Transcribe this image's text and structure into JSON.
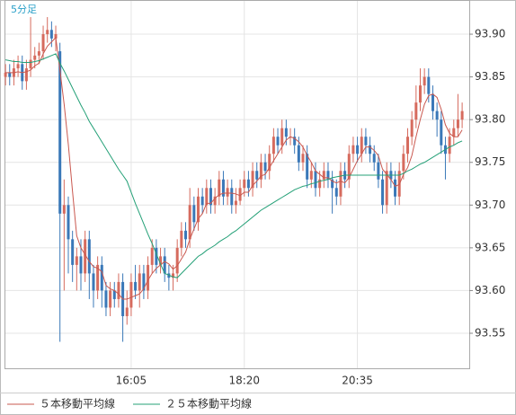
{
  "chart_data": {
    "type": "candlestick",
    "title": "5分足",
    "categories": [
      null,
      null,
      null,
      null,
      null,
      null,
      null,
      null,
      null,
      null,
      null,
      null,
      null,
      null,
      null,
      null,
      null,
      null,
      null,
      null,
      null,
      null,
      null,
      null,
      null,
      null,
      null,
      null,
      null,
      null,
      "16:05",
      null,
      null,
      null,
      null,
      null,
      null,
      null,
      null,
      null,
      null,
      null,
      null,
      null,
      null,
      null,
      null,
      null,
      null,
      null,
      null,
      null,
      null,
      null,
      null,
      null,
      null,
      "18:20",
      null,
      null,
      null,
      null,
      null,
      null,
      null,
      null,
      null,
      null,
      null,
      null,
      null,
      null,
      null,
      null,
      null,
      null,
      null,
      null,
      null,
      null,
      null,
      null,
      null,
      null,
      "20:35",
      null,
      null,
      null,
      null,
      null,
      null,
      null,
      null,
      null,
      null,
      null,
      null,
      null,
      null,
      null,
      null,
      null,
      null,
      null,
      null,
      null,
      null,
      null,
      null,
      null
    ],
    "open": [
      93.85,
      93.855,
      93.85,
      93.86,
      93.865,
      93.845,
      93.86,
      93.87,
      93.875,
      93.88,
      93.9,
      93.905,
      93.895,
      93.88,
      93.69,
      93.7,
      93.66,
      93.63,
      93.64,
      93.62,
      93.66,
      93.62,
      93.6,
      93.63,
      93.6,
      93.58,
      93.6,
      93.59,
      93.61,
      93.57,
      93.58,
      93.61,
      93.6,
      93.62,
      93.6,
      93.63,
      93.65,
      93.63,
      93.64,
      93.62,
      93.615,
      93.62,
      93.65,
      93.67,
      93.66,
      93.7,
      93.68,
      93.71,
      93.7,
      93.72,
      93.7,
      93.71,
      93.73,
      93.71,
      93.72,
      93.7,
      93.705,
      93.72,
      93.73,
      93.72,
      93.74,
      93.73,
      93.75,
      93.74,
      93.76,
      93.78,
      93.77,
      93.79,
      93.78,
      93.78,
      93.77,
      93.75,
      93.76,
      93.73,
      93.74,
      93.72,
      93.73,
      93.74,
      93.73,
      93.72,
      93.71,
      93.74,
      93.73,
      93.76,
      93.77,
      93.76,
      93.78,
      93.77,
      93.76,
      93.75,
      93.73,
      93.7,
      93.74,
      93.73,
      93.71,
      93.74,
      93.76,
      93.78,
      93.8,
      93.82,
      93.84,
      93.85,
      93.83,
      93.81,
      93.8,
      93.77,
      93.76,
      93.78,
      93.79,
      93.8
    ],
    "high": [
      93.865,
      93.865,
      93.87,
      93.875,
      93.875,
      93.87,
      93.92,
      93.885,
      93.89,
      93.91,
      93.92,
      93.915,
      93.91,
      93.89,
      93.73,
      93.71,
      93.67,
      93.65,
      93.66,
      93.67,
      93.67,
      93.63,
      93.64,
      93.64,
      93.61,
      93.61,
      93.61,
      93.62,
      93.62,
      93.6,
      93.62,
      93.63,
      93.63,
      93.63,
      93.64,
      93.66,
      93.66,
      93.65,
      93.65,
      93.63,
      93.63,
      93.66,
      93.68,
      93.68,
      93.72,
      93.71,
      93.72,
      93.72,
      93.73,
      93.73,
      93.72,
      93.74,
      93.74,
      93.73,
      93.73,
      93.72,
      93.73,
      93.74,
      93.74,
      93.75,
      93.75,
      93.76,
      93.76,
      93.77,
      93.79,
      93.79,
      93.8,
      93.8,
      93.79,
      93.79,
      93.78,
      93.77,
      93.77,
      93.75,
      93.75,
      93.74,
      93.75,
      93.75,
      93.74,
      93.73,
      93.75,
      93.75,
      93.77,
      93.78,
      93.78,
      93.79,
      93.79,
      93.78,
      93.77,
      93.76,
      93.74,
      93.75,
      93.75,
      93.74,
      93.75,
      93.77,
      93.79,
      93.81,
      93.84,
      93.86,
      93.86,
      93.86,
      93.84,
      93.82,
      93.81,
      93.78,
      93.79,
      93.8,
      93.83,
      93.82
    ],
    "low": [
      93.84,
      93.84,
      93.84,
      93.85,
      93.835,
      93.835,
      93.85,
      93.86,
      93.865,
      93.87,
      93.89,
      93.885,
      93.88,
      93.54,
      93.6,
      93.62,
      93.61,
      93.6,
      93.6,
      93.61,
      93.59,
      93.58,
      93.59,
      93.58,
      93.57,
      93.57,
      93.58,
      93.58,
      93.54,
      93.56,
      93.57,
      93.59,
      93.58,
      93.59,
      93.59,
      93.62,
      93.62,
      93.62,
      93.61,
      93.6,
      93.6,
      93.61,
      93.64,
      93.65,
      93.65,
      93.67,
      93.67,
      93.69,
      93.69,
      93.69,
      93.69,
      93.7,
      93.7,
      93.7,
      93.69,
      93.69,
      93.7,
      93.71,
      93.71,
      93.71,
      93.72,
      93.72,
      93.73,
      93.73,
      93.75,
      93.76,
      93.76,
      93.77,
      93.77,
      93.76,
      93.74,
      93.74,
      93.72,
      93.72,
      93.71,
      93.71,
      93.72,
      93.72,
      93.69,
      93.7,
      93.7,
      93.72,
      93.72,
      93.75,
      93.75,
      93.75,
      93.76,
      93.75,
      93.74,
      93.72,
      93.69,
      93.69,
      93.72,
      93.7,
      93.7,
      93.73,
      93.75,
      93.77,
      93.79,
      93.81,
      93.83,
      93.82,
      93.8,
      93.78,
      93.76,
      93.73,
      93.75,
      93.77,
      93.78,
      93.79
    ],
    "close": [
      93.855,
      93.85,
      93.86,
      93.865,
      93.845,
      93.86,
      93.87,
      93.875,
      93.88,
      93.9,
      93.905,
      93.895,
      93.9,
      93.69,
      93.7,
      93.66,
      93.63,
      93.64,
      93.62,
      93.66,
      93.62,
      93.6,
      93.63,
      93.6,
      93.58,
      93.6,
      93.59,
      93.61,
      93.57,
      93.58,
      93.61,
      93.6,
      93.62,
      93.6,
      93.63,
      93.65,
      93.63,
      93.64,
      93.62,
      93.615,
      93.62,
      93.65,
      93.67,
      93.66,
      93.7,
      93.68,
      93.71,
      93.7,
      93.72,
      93.7,
      93.71,
      93.73,
      93.71,
      93.72,
      93.7,
      93.705,
      93.72,
      93.73,
      93.72,
      93.74,
      93.73,
      93.75,
      93.74,
      93.76,
      93.78,
      93.77,
      93.79,
      93.78,
      93.78,
      93.77,
      93.75,
      93.76,
      93.73,
      93.74,
      93.72,
      93.73,
      93.74,
      93.73,
      93.72,
      93.71,
      93.74,
      93.73,
      93.76,
      93.77,
      93.76,
      93.78,
      93.77,
      93.76,
      93.75,
      93.73,
      93.7,
      93.74,
      93.73,
      93.71,
      93.74,
      93.76,
      93.78,
      93.8,
      93.82,
      93.84,
      93.85,
      93.83,
      93.81,
      93.8,
      93.77,
      93.76,
      93.78,
      93.79,
      93.8,
      93.81
    ],
    "up_color": "#d66b5e",
    "down_color": "#3a78b8",
    "series": [
      {
        "name": "５本移動平均線",
        "color": "#c9584f",
        "values": [
          93.855,
          93.855,
          93.855,
          93.856,
          93.855,
          93.856,
          93.858,
          93.863,
          93.866,
          93.877,
          93.886,
          93.891,
          93.896,
          93.858,
          93.818,
          93.771,
          93.716,
          93.664,
          93.65,
          93.642,
          93.634,
          93.628,
          93.626,
          93.622,
          93.606,
          93.602,
          93.6,
          93.596,
          93.59,
          93.59,
          93.592,
          93.594,
          93.596,
          93.602,
          93.612,
          93.62,
          93.626,
          93.63,
          93.634,
          93.631,
          93.625,
          93.629,
          93.637,
          93.645,
          93.66,
          93.672,
          93.684,
          93.69,
          93.702,
          93.702,
          93.708,
          93.712,
          93.714,
          93.714,
          93.714,
          93.713,
          93.711,
          93.715,
          93.715,
          93.723,
          93.728,
          93.734,
          93.736,
          93.744,
          93.752,
          93.76,
          93.768,
          93.776,
          93.78,
          93.778,
          93.774,
          93.768,
          93.758,
          93.75,
          93.74,
          93.736,
          93.732,
          93.732,
          93.728,
          93.726,
          93.728,
          93.726,
          93.732,
          93.742,
          93.752,
          93.76,
          93.768,
          93.768,
          93.764,
          93.758,
          93.742,
          93.736,
          93.73,
          93.722,
          93.724,
          93.736,
          93.744,
          93.758,
          93.78,
          93.8,
          93.818,
          93.828,
          93.83,
          93.826,
          93.812,
          93.794,
          93.784,
          93.78,
          93.78,
          93.788
        ]
      },
      {
        "name": "２５本移動平均線",
        "color": "#24a077",
        "values": [
          93.87,
          93.869,
          93.868,
          93.868,
          93.867,
          93.867,
          93.867,
          93.868,
          93.869,
          93.871,
          93.873,
          93.875,
          93.877,
          93.866,
          93.857,
          93.847,
          93.837,
          93.827,
          93.817,
          93.808,
          93.798,
          93.79,
          93.782,
          93.774,
          93.766,
          93.758,
          93.75,
          93.742,
          93.735,
          93.728,
          93.715,
          93.702,
          93.69,
          93.678,
          93.666,
          93.655,
          93.643,
          93.631,
          93.62,
          93.618,
          93.616,
          93.615,
          93.62,
          93.625,
          93.63,
          93.635,
          93.64,
          93.643,
          93.647,
          93.65,
          93.653,
          93.657,
          93.66,
          93.663,
          93.667,
          93.67,
          93.674,
          93.678,
          93.682,
          93.686,
          93.69,
          93.694,
          93.697,
          93.7,
          93.703,
          93.706,
          93.709,
          93.712,
          93.715,
          93.718,
          93.72,
          93.722,
          93.723,
          93.725,
          93.726,
          93.728,
          93.729,
          93.73,
          93.732,
          93.733,
          93.734,
          93.735,
          93.735,
          93.735,
          93.735,
          93.735,
          93.735,
          93.735,
          93.735,
          93.735,
          93.735,
          93.735,
          93.735,
          93.735,
          93.735,
          93.737,
          93.74,
          93.742,
          93.745,
          93.748,
          93.75,
          93.753,
          93.756,
          93.759,
          93.762,
          93.765,
          93.768,
          93.77,
          93.773,
          93.775
        ]
      }
    ],
    "ylim": [
      93.509,
      93.94
    ],
    "yticks": [
      {
        "value": 93.9,
        "label": "93.90"
      },
      93.85,
      {
        "value": 93.8,
        "label": "93.80"
      },
      93.75,
      {
        "value": 93.7,
        "label": "93.70"
      },
      93.65,
      {
        "value": 93.6,
        "label": "93.60"
      },
      93.55
    ],
    "grid": true
  }
}
